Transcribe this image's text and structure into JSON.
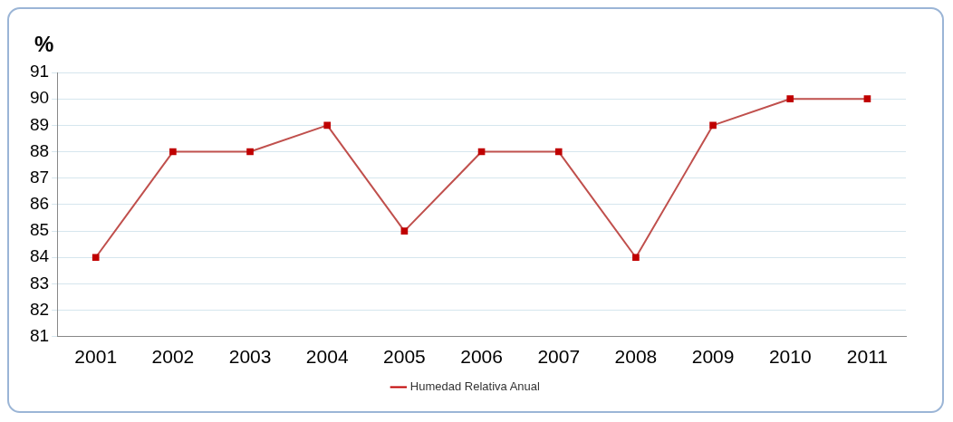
{
  "chart_data": {
    "type": "line",
    "ylabel": "%",
    "categories": [
      "2001",
      "2002",
      "2003",
      "2004",
      "2005",
      "2006",
      "2007",
      "2008",
      "2009",
      "2010",
      "2011"
    ],
    "series": [
      {
        "name": "Humedad Relativa Anual",
        "color": "#c0504d",
        "values": [
          84,
          88,
          88,
          89,
          85,
          88,
          88,
          84,
          89,
          90,
          90
        ]
      }
    ],
    "ylim": [
      81,
      91
    ],
    "yticks": [
      81,
      82,
      83,
      84,
      85,
      86,
      87,
      88,
      89,
      90,
      91
    ],
    "grid": "y",
    "legend": "bottom",
    "marker": "square",
    "line_style": "solid"
  }
}
